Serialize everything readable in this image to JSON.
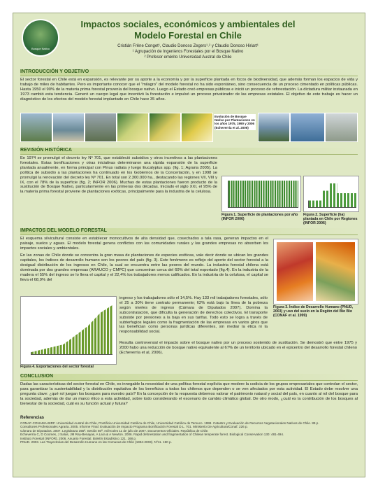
{
  "header": {
    "title": "Impactos sociales, económicos y ambientales del Modelo Forestal en Chile",
    "authors": "Cristián Frêne Conget¹, Claudio Donoso Zegers¹˒² y Claudio Donoso Hiriart¹",
    "affiliations": [
      "¹ Agrupación de Ingenieros Forestales por el Bosque Nativo",
      "² Profesor emérito Universidad Austral de Chile"
    ],
    "logo_text": "Bosque Nativo"
  },
  "intro": {
    "heading": "INTRODUCCIÓN Y OBJETIVO",
    "text": "El sector forestal en Chile está en expansión, es relevante por su aporte a la economía y por la superficie plantada en focos de biodiversidad, que además forman los espacios de vida y trabajo de miles de habitantes. Pero es importante conocer que el \"milagro\" del modelo forestal no ha sido espontáneo, sino consecuencia de un proceso cimentado en políticas públicas. Hasta 1950 el 90% de la materia prima forestal provenía del bosque nativo. Luego el Estado creó empresas públicas e inició un proceso de reforestación. La dictadura militar instaurada en 1973 cambió esta tendencia. Generó un cuerpo legal que incentivó la forestación e impulsó un proceso privatizador de las empresas estatales. El objetivo de este trabajo es hacer un diagnóstico de los efectos del modelo forestal implantado en Chile hace 35 años.",
    "photo_caption": "Evolución de Bosque Nativo por Plantaciones en los años 1975, 1990 y 2006 (Echeverría et al. 2006)"
  },
  "history": {
    "heading": "REVISIÓN HISTÓRICA",
    "text": "En 1974 se promulgó el decreto ley Nº 701, que estableció subsidios y otros incentivos a las plantaciones forestales. Estas bonificaciones y otras iniciativas determinaron una rápida expansión de la superficie plantada anualmente, en forma principal con Pinus radiata y luego Eucalyptus spp. (fig. 1; Agraria 2005). La política de subsidio a las plantaciones ha continuado en los Gobiernos de la Concertación, y en 1998 se promulgó la renovación del decreto ley Nº 701. En total son 2.300.000 ha., destacando las regiones VII, VIII y IX, con el 78% de la superficie (fig. 2; INFOR 2006). Muchas de estas plantaciones fueron producto de la sustitución de Bosque Nativo, particularmente en las primeras dos décadas. Iniciado el siglo XXI, el 95% de la materia prima forestal proviene de plantaciones exóticas, principalmente para la industria de la celulosa.",
    "figure1": "Figura 1. Superficie de plantaciones por año (INFOR 2006)",
    "figure2": "Figura 2. Superficie (ha) plantada en Chile por Regiones (INFOR 2006)"
  },
  "impacts": {
    "heading": "IMPACTOS DEL MODELO FORESTAL",
    "paragraphs": [
      "El esquema silvicultural consiste en establecer monocultivos de alta densidad que, cosechados a tala rasa, generan impactos en el paisaje, suelos y aguas. El modelo forestal genera conflictos con las comunidades rurales y las grandes empresas no absorben los impactos sociales y ambientales.",
      "En las zonas de Chile donde se concentra la gran masa de plantaciones de especies exóticas, vale decir donde se ubican los grandes capitales, los índices de desarrollo humano son los peores del país (fig. 3). Este fenómeno es reflejo del aporte del sector forestal a la desigual distribución de los ingresos en Chile, la cual se encuentra entre las peores del mundo. La industria forestal chilena está dominada por dos grandes empresas (ARAUCO y CMPC) que concentran cerca del 60% del total exportado (fig.4). En la industria de la madera el 55% del ingreso se lo lleva el capital y el 22,4% los trabajadores menos calificados. En la industria de la celulosa, el capital se lleva el 68,9% del",
      "ingreso y los trabajadores sólo el 14,5%. Hay 133 mil trabajadores forestales, sólo el 25 a 30% tiene contrato permanente; 62% está bajo la línea de la pobreza según niveles de ingreso (Cámara de Diputados 2007). Domina la subcontratación, que dificulta la generación de derechos colectivos. El transporte subsiste por presiones a la baja en sus tarifas. Todo esto se logra a través de subterfugios legales como la fragmentación de las empresas en varios giros que las benefician como personas jurídicas diferentes, sin mediar la ética ni la responsabilidad social.",
      "Resulta controversial el impacto sobre el bosque nativo por un proceso sostenido de sustitución. Se demostró que entre 1975 y 2000 hubo una reducción de bosque nativo equivalente al 67% de un territorio ubicado en el epicentro del desarrollo forestal chileno (Echeverría et al, 2006)."
    ],
    "figure3": "Figura 3. Índice de Desarrollo Humano (PNUD, 2003) y uso del suelo en la Región del Bío Bío (CONAF et al. 1999)",
    "figure4": "Figura 4. Exportaciones del sector forestal"
  },
  "conclusion": {
    "heading": "CONCLUSION",
    "text": "Dadas las características del sector forestal en Chile, es innegable la necesidad de una política forestal explícita que modere la codicia de los grupos empresariales que controlan el sector, para garantizar la sustentabilidad y la distribución equitativa de los beneficios a todos los chilenos que dependen o se ven afectados por esta actividad. El Estado debe resolver una pregunta clave: ¿qué rol juegan los bosques para nuestro país? En la concepción de la respuesta debemos valorar el patrimonio natural y social del país, en cuanto al rol del bosque para la sociedad, además de dar un marco ético a esta actividad, sobre todo considerando el escenario de cambio climático global. De otro modo, ¿cuál es la contribución de los bosques al bienestar de la sociedad, cuál es su función actual y futura?"
  },
  "references": {
    "heading": "Referencias",
    "items": [
      "CONAF-CONAMA-BIRF. Universidad Austral de Chile, Pontificia Universidad Católica de Chile, Universidad Católica de Temuco. 1999. Catastro y Evaluación de Recursos Vegetacionales Nativos de Chile. 89 p.",
      "Consultores Profesionales Agraria. 2005. Informe Final: Evaluación de Impacto Programa Bonificación Forestal D.L. 701. Ministerio De Agricultura/Conaf. 226 p.",
      "Cámara de Diputados. 2007. Legislatura 355ª. Sesión 50ª, miércoles 11 de julio de 2007. Documentos Oficiales. República de Chile.",
      "Echeverría C, D Coomes, J Salas, JM Rey-Benayas, A Lara & A Newton. 2006. Rapid deforestation and fragmentation of Chilean temperate forest. Biological Conservation 130: 481-494.",
      "Instituto Forestal (INFOR). 2006. Anuario Forestal. Boletín Estadístico 121. 168 p.",
      "PNUD. 2003. Las Trayectorias del Desarrollo Humano en las Comunas de Chile (1994-2003). Nº11. 190 p."
    ]
  }
}
